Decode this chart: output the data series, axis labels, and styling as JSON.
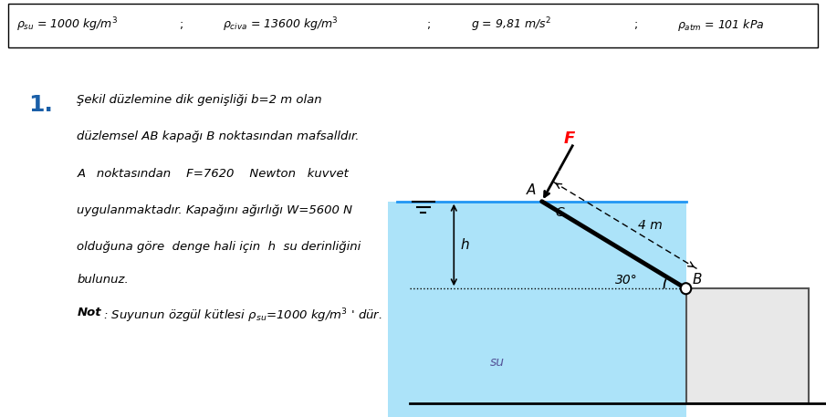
{
  "header_text": "ρₛᵤ = 1000 kg/m³     ;     ρᶜᵢᵥᵃ = 13600 kg/m³     ;     g = 9,81 m/s²     ;     ρₐₜₘ = 101 kPa",
  "problem_number": "1.",
  "problem_text_line1": "Şekil düzlemine dik genişliği b=2 m olan",
  "problem_text_line2": "düzlemsel AB kapağı B noktasından mafsalldır.",
  "problem_text_line3": "A   noktasından    F=7620    Newton   kuvvet",
  "problem_text_line4": "uygulanmaktadır. Kapağını ağırlığı W=5600 N",
  "problem_text_line5": "olduğuna göre  denge hali için  h  su derinliğini",
  "problem_text_line6": "bulunuz.",
  "note_text": "Not: Suyunun özgül kütlesi ρₛᵤ=1000 kg/m³ ’ dür.",
  "water_color": "#5bc8f5",
  "box_color": "#d3d3d3",
  "background_color": "#ffffff"
}
